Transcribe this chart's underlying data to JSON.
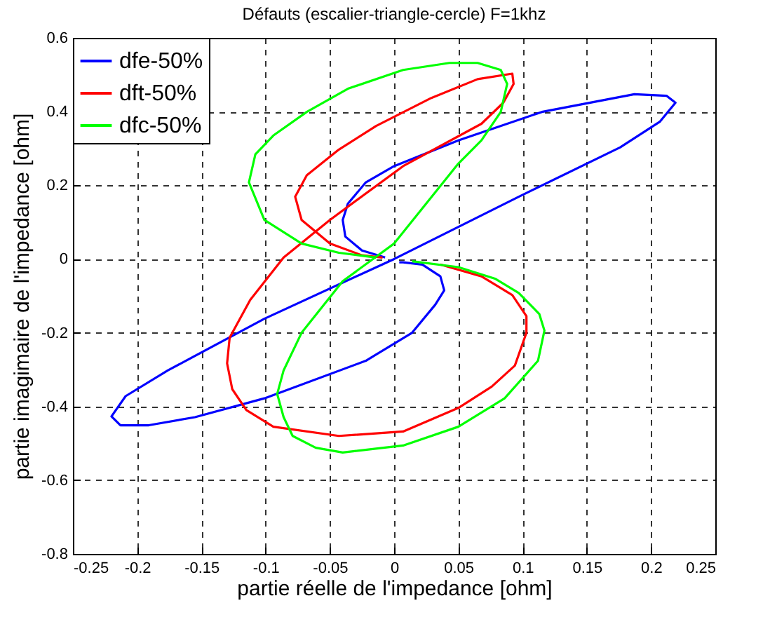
{
  "chart_data": {
    "type": "line",
    "title": "Défauts (escalier-triangle-cercle) F=1khz",
    "xlabel": "partie réelle de l'impedance [ohm]",
    "ylabel": "partie imagimaire de l'impedance [ohm]",
    "xlim": [
      -0.25,
      0.25
    ],
    "xticks": [
      -0.25,
      -0.2,
      -0.15,
      -0.1,
      -0.05,
      0,
      0.05,
      0.1,
      0.15,
      0.2,
      0.25
    ],
    "ylim": [
      -0.8,
      0.6
    ],
    "yticks": [
      -0.8,
      -0.6,
      -0.4,
      -0.2,
      0,
      0.2,
      0.4,
      0.6
    ],
    "grid": true,
    "legend": "top left",
    "line_style": "solid",
    "series": [
      {
        "name": "dfe-50%",
        "color": "#0000ff",
        "x": [
          -0.007,
          -0.025,
          -0.038,
          -0.04,
          -0.036,
          -0.022,
          0,
          0.05,
          0.115,
          0.187,
          0.212,
          0.219,
          0.207,
          0.176,
          0.097,
          0,
          -0.101,
          -0.176,
          -0.209,
          -0.22,
          -0.213,
          -0.191,
          -0.155,
          -0.101,
          -0.022,
          0.014,
          0.032,
          0.039,
          0.036,
          0.022,
          0.007,
          0.004
        ],
        "values": [
          0.004,
          0.023,
          0.061,
          0.106,
          0.15,
          0.208,
          0.252,
          0.322,
          0.399,
          0.447,
          0.443,
          0.424,
          0.373,
          0.303,
          0.169,
          0,
          -0.162,
          -0.302,
          -0.372,
          -0.427,
          -0.451,
          -0.451,
          -0.429,
          -0.378,
          -0.276,
          -0.2,
          -0.124,
          -0.085,
          -0.047,
          -0.015,
          -0.009,
          -0.009
        ]
      },
      {
        "name": "dft-50%",
        "color": "#ff0000",
        "x": [
          -0.009,
          -0.025,
          -0.05,
          -0.072,
          -0.077,
          -0.068,
          -0.043,
          -0.014,
          0.029,
          0.065,
          0.092,
          0.093,
          0.085,
          0.068,
          0.007,
          -0.05,
          -0.086,
          -0.112,
          -0.128,
          -0.13,
          -0.126,
          -0.115,
          -0.094,
          -0.043,
          0.007,
          0.05,
          0.076,
          0.094,
          0.103,
          0.103,
          0.092,
          0.068,
          0.036
        ],
        "values": [
          0.004,
          0.01,
          0.042,
          0.106,
          0.169,
          0.227,
          0.297,
          0.361,
          0.437,
          0.488,
          0.503,
          0.475,
          0.424,
          0.367,
          0.252,
          0.106,
          0.004,
          -0.111,
          -0.213,
          -0.283,
          -0.353,
          -0.41,
          -0.455,
          -0.48,
          -0.468,
          -0.404,
          -0.346,
          -0.289,
          -0.2,
          -0.155,
          -0.098,
          -0.047,
          -0.015
        ]
      },
      {
        "name": "dfc-50%",
        "color": "#00ff00",
        "x": [
          -0.014,
          -0.043,
          -0.072,
          -0.101,
          -0.113,
          -0.108,
          -0.094,
          -0.068,
          -0.036,
          0.007,
          0.043,
          0.065,
          0.083,
          0.088,
          0.083,
          0.068,
          0.05,
          0,
          -0.04,
          -0.072,
          -0.086,
          -0.091,
          -0.086,
          -0.079,
          -0.061,
          -0.04,
          0.007,
          0.05,
          0.086,
          0.112,
          0.117,
          0.113,
          0.097,
          0.079,
          0.05,
          0.014
        ],
        "values": [
          0.004,
          0.017,
          0.042,
          0.106,
          0.208,
          0.284,
          0.335,
          0.399,
          0.462,
          0.513,
          0.532,
          0.532,
          0.513,
          0.475,
          0.399,
          0.322,
          0.259,
          0.042,
          -0.06,
          -0.2,
          -0.302,
          -0.366,
          -0.429,
          -0.48,
          -0.512,
          -0.525,
          -0.506,
          -0.455,
          -0.378,
          -0.276,
          -0.194,
          -0.149,
          -0.092,
          -0.054,
          -0.022,
          -0.006
        ]
      }
    ]
  }
}
